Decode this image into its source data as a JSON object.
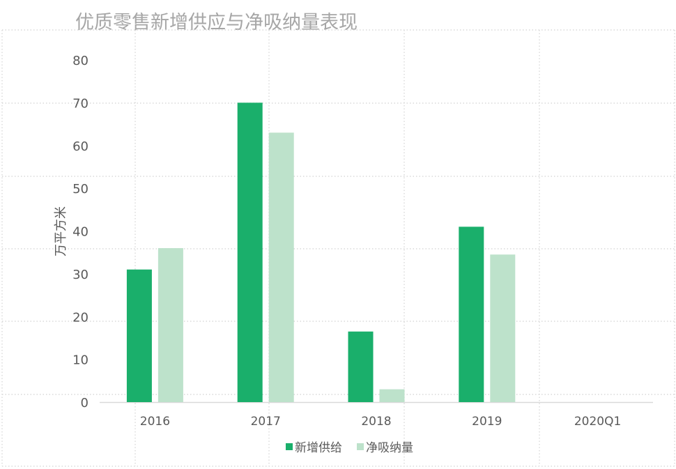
{
  "chart_data": {
    "type": "bar",
    "title": "优质零售新增供应与净吸纳量表现",
    "xlabel": "",
    "ylabel": "万平方米",
    "categories": [
      "2016",
      "2017",
      "2018",
      "2019",
      "2020Q1"
    ],
    "ylim": [
      0,
      80
    ],
    "yticks": [
      0,
      10,
      20,
      30,
      40,
      50,
      60,
      70,
      80
    ],
    "grid": false,
    "legend_position": "bottom",
    "series": [
      {
        "name": "新增供给",
        "color": "#1aaf6b",
        "values": [
          31,
          70,
          16.5,
          41,
          null
        ]
      },
      {
        "name": "净吸纳量",
        "color": "#bde2cb",
        "values": [
          36,
          63,
          3,
          34.5,
          null
        ]
      }
    ]
  }
}
